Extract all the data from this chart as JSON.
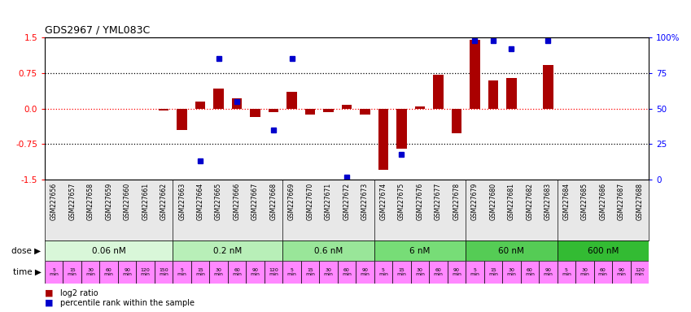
{
  "title": "GDS2967 / YML083C",
  "samples": [
    "GSM227656",
    "GSM227657",
    "GSM227658",
    "GSM227659",
    "GSM227660",
    "GSM227661",
    "GSM227662",
    "GSM227663",
    "GSM227664",
    "GSM227665",
    "GSM227666",
    "GSM227667",
    "GSM227668",
    "GSM227669",
    "GSM227670",
    "GSM227671",
    "GSM227672",
    "GSM227673",
    "GSM227674",
    "GSM227675",
    "GSM227676",
    "GSM227677",
    "GSM227678",
    "GSM227679",
    "GSM227680",
    "GSM227681",
    "GSM227682",
    "GSM227683",
    "GSM227684",
    "GSM227685",
    "GSM227686",
    "GSM227687",
    "GSM227688"
  ],
  "log2_ratio": [
    0.0,
    0.0,
    0.0,
    0.0,
    0.0,
    0.0,
    -0.05,
    -0.45,
    0.15,
    0.42,
    0.22,
    -0.18,
    -0.07,
    0.35,
    -0.12,
    -0.08,
    0.08,
    -0.12,
    -1.3,
    -0.85,
    0.05,
    0.72,
    -0.52,
    1.45,
    0.6,
    0.65,
    0.0,
    0.92,
    0.0,
    0.0,
    0.0,
    0.0,
    0.0
  ],
  "percentile": [
    null,
    null,
    null,
    null,
    null,
    null,
    null,
    null,
    13,
    85,
    55,
    null,
    35,
    85,
    null,
    null,
    2,
    null,
    null,
    18,
    null,
    null,
    null,
    98,
    98,
    92,
    null,
    98,
    null,
    null,
    null,
    null,
    null
  ],
  "bar_color": "#aa0000",
  "dot_color": "#0000cc",
  "yticks_left": [
    -1.5,
    -0.75,
    0.0,
    0.75,
    1.5
  ],
  "yticks_right": [
    0,
    25,
    50,
    75,
    100
  ],
  "dose_groups": [
    {
      "label": "0.06 nM",
      "start": 0,
      "end": 7,
      "color": "#d9f7d9"
    },
    {
      "label": "0.2 nM",
      "start": 7,
      "end": 13,
      "color": "#b8efb8"
    },
    {
      "label": "0.6 nM",
      "start": 13,
      "end": 18,
      "color": "#99e699"
    },
    {
      "label": "6 nM",
      "start": 18,
      "end": 23,
      "color": "#77dd77"
    },
    {
      "label": "60 nM",
      "start": 23,
      "end": 28,
      "color": "#55cc55"
    },
    {
      "label": "600 nM",
      "start": 28,
      "end": 33,
      "color": "#33bb33"
    }
  ],
  "time_labels_per_group": [
    [
      "5\nmin",
      "15\nmin",
      "30\nmin",
      "60\nmin",
      "90\nmin",
      "120\nmin",
      "150\nmin"
    ],
    [
      "5\nmin",
      "15\nmin",
      "30\nmin",
      "60\nmin",
      "90\nmin",
      "120\nmin"
    ],
    [
      "5\nmin",
      "15\nmin",
      "30\nmin",
      "60\nmin",
      "90\nmin"
    ],
    [
      "5\nmin",
      "15\nmin",
      "30\nmin",
      "60\nmin",
      "90\nmin"
    ],
    [
      "5\nmin",
      "15\nmin",
      "30\nmin",
      "60\nmin",
      "90\nmin"
    ],
    [
      "5\nmin",
      "30\nmin",
      "60\nmin",
      "90\nmin",
      "120\nmin"
    ]
  ],
  "time_cell_color": "#ff88ff",
  "time_border_color": "#cc00cc",
  "dose_label_x": "dose ▶",
  "time_label_x": "time ▶"
}
